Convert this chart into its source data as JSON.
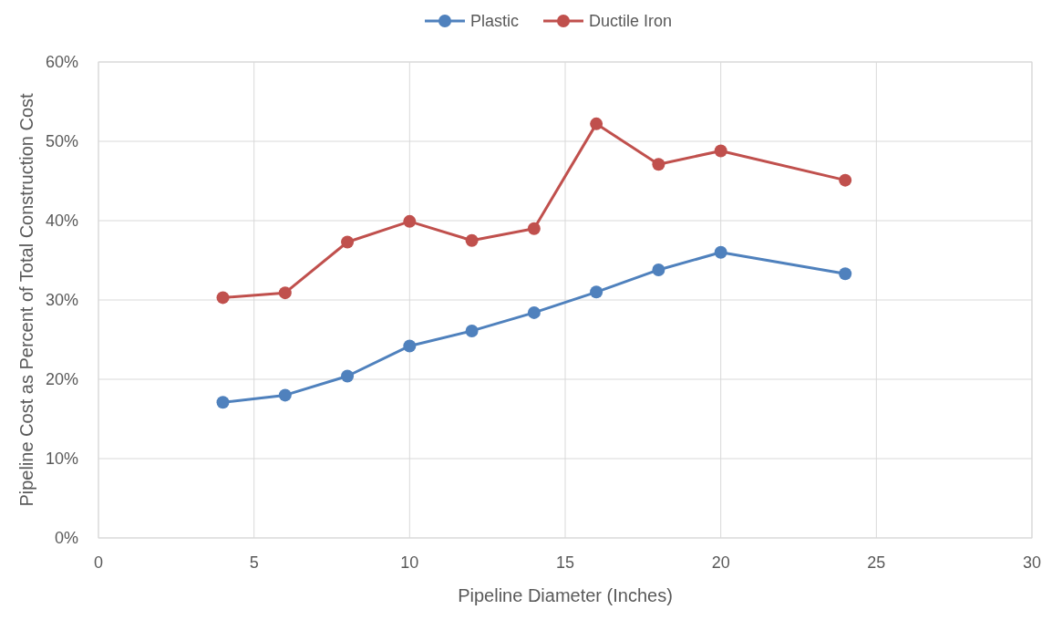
{
  "chart_data": {
    "type": "line",
    "xlabel": "Pipeline Diameter (Inches)",
    "ylabel": "Pipeline Cost as Percent of Total Construction Cost",
    "x": [
      4,
      6,
      8,
      10,
      12,
      14,
      16,
      18,
      20,
      24
    ],
    "series": [
      {
        "name": "Plastic",
        "color": "#4f81bd",
        "values": [
          17.1,
          18.0,
          20.4,
          24.2,
          26.1,
          28.4,
          31.0,
          33.8,
          36.0,
          33.3
        ]
      },
      {
        "name": "Ductile Iron",
        "color": "#c0504d",
        "values": [
          30.3,
          30.9,
          37.3,
          39.9,
          37.5,
          39.0,
          52.2,
          47.1,
          48.8,
          45.1
        ]
      }
    ],
    "xlim": [
      0,
      30
    ],
    "xticks": [
      0,
      5,
      10,
      15,
      20,
      25,
      30
    ],
    "ylim": [
      0,
      60
    ],
    "yticks": [
      {
        "value": 0,
        "label": "0%"
      },
      {
        "value": 10,
        "label": "10%"
      },
      {
        "value": 20,
        "label": "20%"
      },
      {
        "value": 30,
        "label": "30%"
      },
      {
        "value": 40,
        "label": "40%"
      },
      {
        "value": 50,
        "label": "50%"
      },
      {
        "value": 60,
        "label": "60%"
      }
    ],
    "grid": true,
    "legend": "top",
    "marker": "circle",
    "line_style": "solid"
  }
}
